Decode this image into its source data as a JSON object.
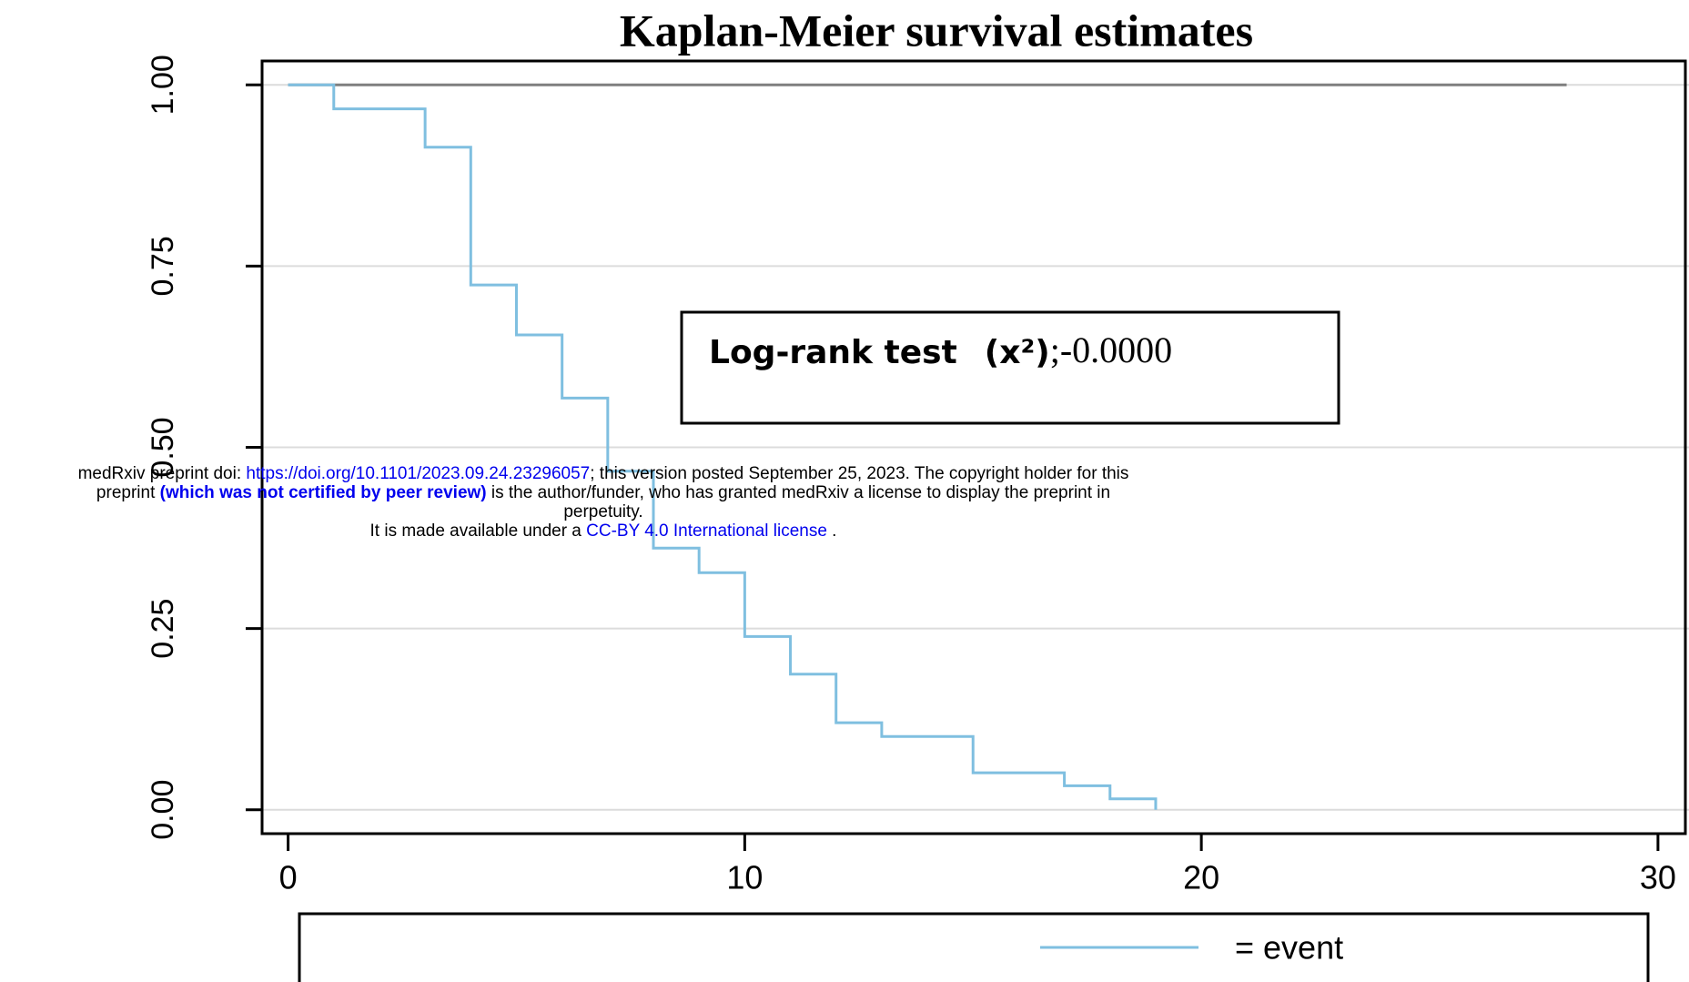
{
  "chart_data": {
    "type": "line",
    "step": "post",
    "title": "Kaplan-Meier survival estimates",
    "series": [
      {
        "color": "#7f7f7f",
        "x": [
          0,
          28
        ],
        "values": [
          1,
          1
        ]
      },
      {
        "name": "= event",
        "color": "#7fbfe0",
        "x": [
          0,
          1,
          3,
          4,
          5,
          6,
          7,
          8,
          9,
          10,
          11,
          12,
          13,
          15,
          17,
          18,
          19
        ],
        "values": [
          1,
          0.967,
          0.914,
          0.724,
          0.655,
          0.568,
          0.467,
          0.361,
          0.327,
          0.239,
          0.187,
          0.12,
          0.101,
          0.051,
          0.033,
          0.015,
          0
        ]
      }
    ],
    "xlim": [
      -0.57,
      30.6
    ],
    "xticks": [
      0,
      10,
      20,
      30
    ],
    "ylim": [
      -0.033,
      1.033
    ],
    "yticks": [
      {
        "value": 0,
        "label": "0.00"
      },
      {
        "value": 0.25,
        "label": "0.25"
      },
      {
        "value": 0.5,
        "label": "0.50"
      },
      {
        "value": 0.75,
        "label": "0.75"
      },
      {
        "value": 1,
        "label": "1.00"
      }
    ],
    "grid": true,
    "annotation": {
      "label": "Log-rank test",
      "stat": "(x²)",
      "value": ";-0.0000"
    }
  },
  "watermark": {
    "line1": {
      "before": "medRxiv preprint doi: ",
      "link": "https://doi.org/10.1101/2023.09.24.23296057",
      "after": "; this version posted September 25, 2023. The copyright holder for this"
    },
    "line2": {
      "before": "preprint ",
      "bold": "(which was not certified by peer review)",
      "after": " is the author/funder, who has granted medRxiv a license to display the preprint in"
    },
    "line3": "perpetuity.",
    "line4": {
      "before": "It is made available under a ",
      "link": "CC-BY 4.0 International license",
      "after": " ."
    }
  }
}
